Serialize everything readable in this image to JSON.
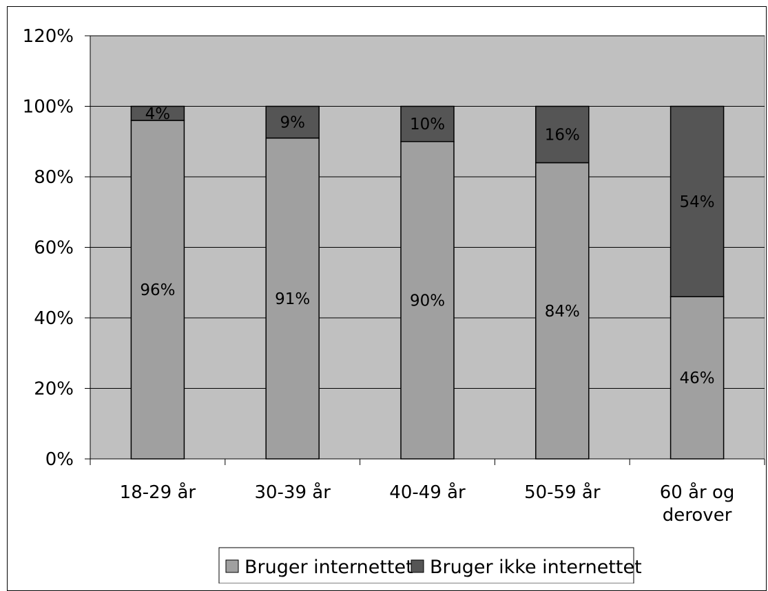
{
  "chart_data": {
    "type": "bar",
    "stacked": true,
    "percent_stacked": true,
    "categories": [
      "18-29 år",
      "30-39 år",
      "40-49 år",
      "50-59 år",
      "60 år og derover"
    ],
    "category_lines": [
      [
        "18-29 år"
      ],
      [
        "30-39 år"
      ],
      [
        "40-49 år"
      ],
      [
        "50-59 år"
      ],
      [
        "60 år og",
        "derover"
      ]
    ],
    "series": [
      {
        "name": "Bruger internettet",
        "values": [
          96,
          91,
          90,
          84,
          46
        ],
        "labels": [
          "96%",
          "91%",
          "90%",
          "84%",
          "46%"
        ],
        "color": "#a0a0a0"
      },
      {
        "name": "Bruger ikke internettet",
        "values": [
          4,
          9,
          10,
          16,
          54
        ],
        "labels": [
          "4%",
          "9%",
          "10%",
          "16%",
          "54%"
        ],
        "color": "#555555"
      }
    ],
    "y_ticks": [
      "0%",
      "20%",
      "40%",
      "60%",
      "80%",
      "100%",
      "120%"
    ],
    "ylim": [
      0,
      120
    ],
    "title": "",
    "xlabel": "",
    "ylabel": "",
    "grid": true,
    "legend_position": "bottom",
    "plot_background": "#c0c0c0"
  }
}
